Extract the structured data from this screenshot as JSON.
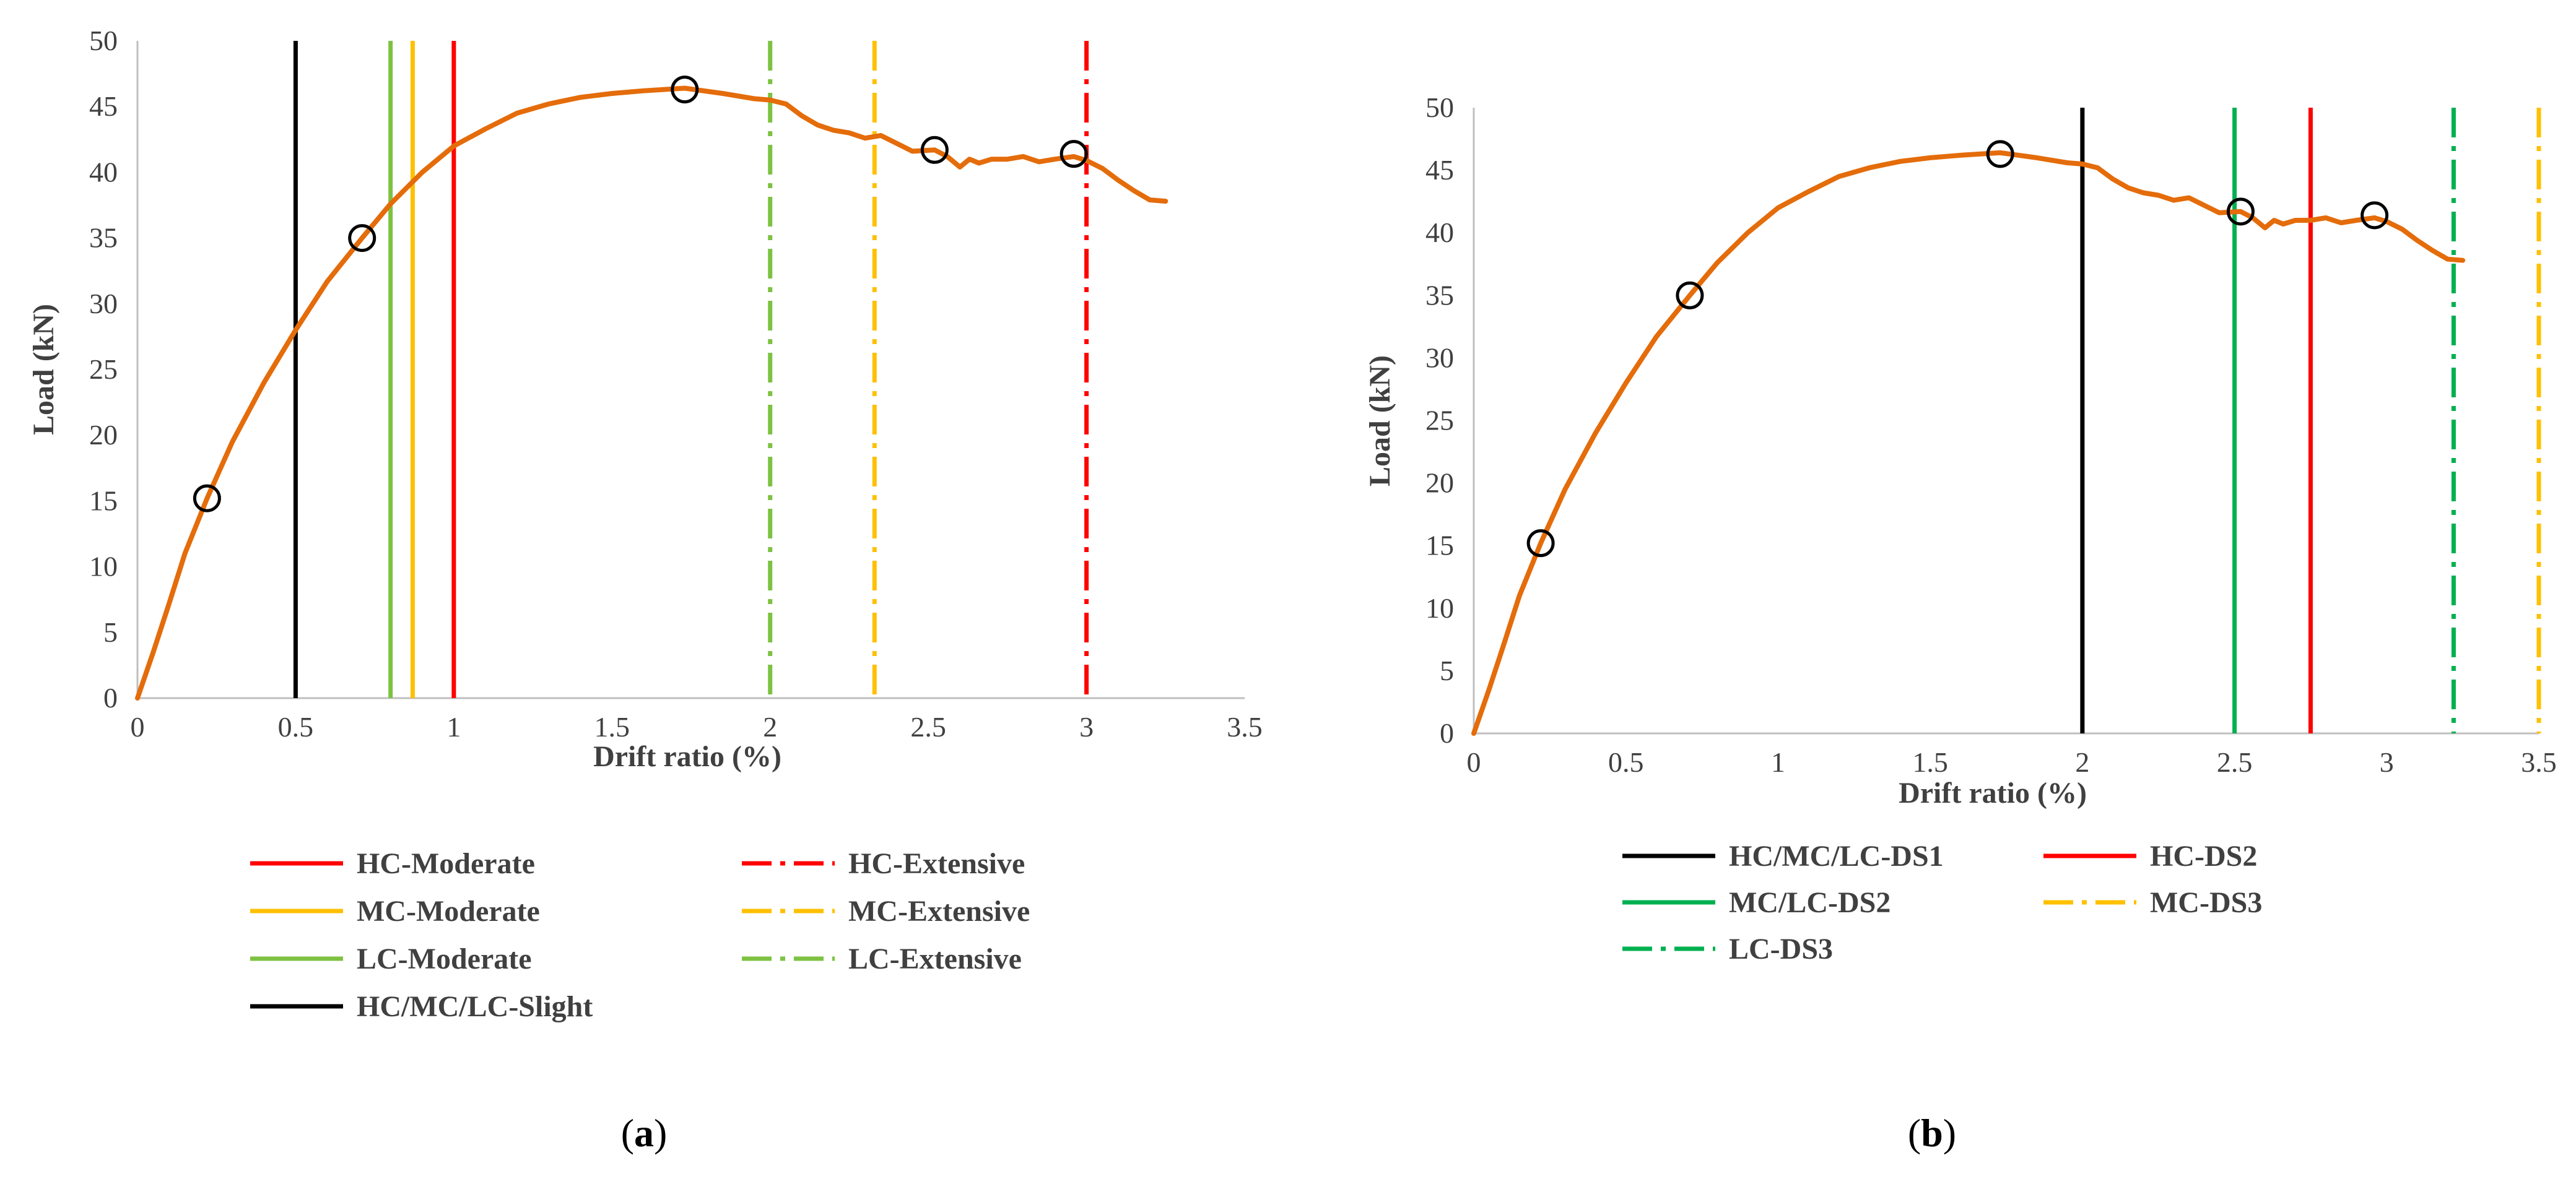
{
  "colors": {
    "curve": "#E46C0A",
    "hc": "#FF0000",
    "mc": "#FFC000",
    "lc_a": "#7DC242",
    "lc_b": "#00B050",
    "slight": "#000000"
  },
  "panel_labels": {
    "a": {
      "open": "(",
      "letter": "a",
      "close": ")"
    },
    "b": {
      "open": "(",
      "letter": "b",
      "close": ")"
    }
  },
  "chart_data": [
    {
      "id": "a",
      "type": "line",
      "xlabel": "Drift ratio (%)",
      "ylabel": "Load (kN)",
      "xlim": [
        0,
        3.5
      ],
      "ylim": [
        0,
        50
      ],
      "xticks": [
        "0",
        "0.5",
        "1",
        "1.5",
        "2",
        "2.5",
        "3",
        "3.5"
      ],
      "xtick_values": [
        0,
        0.5,
        1,
        1.5,
        2,
        2.5,
        3,
        3.5
      ],
      "yticks": [
        "0",
        "5",
        "10",
        "15",
        "20",
        "25",
        "30",
        "35",
        "40",
        "45",
        "50"
      ],
      "ytick_values": [
        0,
        5,
        10,
        15,
        20,
        25,
        30,
        35,
        40,
        45,
        50
      ],
      "curve": {
        "x": [
          0,
          0.05,
          0.1,
          0.15,
          0.22,
          0.3,
          0.4,
          0.5,
          0.6,
          0.71,
          0.8,
          0.9,
          1.0,
          1.1,
          1.2,
          1.3,
          1.4,
          1.5,
          1.6,
          1.73,
          1.85,
          1.95,
          2.0,
          2.05,
          2.1,
          2.15,
          2.2,
          2.25,
          2.3,
          2.35,
          2.4,
          2.45,
          2.52,
          2.56,
          2.6,
          2.63,
          2.66,
          2.7,
          2.75,
          2.8,
          2.85,
          2.9,
          2.96,
          3.0,
          3.05,
          3.1,
          3.15,
          3.2,
          3.25
        ],
        "y": [
          0,
          3.5,
          7.2,
          11,
          15.2,
          19.5,
          24,
          28,
          31.7,
          35,
          37.6,
          40,
          42,
          43.3,
          44.5,
          45.2,
          45.7,
          46,
          46.2,
          46.4,
          46,
          45.6,
          45.5,
          45.2,
          44.3,
          43.6,
          43.2,
          43,
          42.6,
          42.8,
          42.2,
          41.6,
          41.7,
          41.2,
          40.4,
          41.0,
          40.7,
          41.0,
          41.0,
          41.2,
          40.8,
          41.0,
          41.2,
          40.9,
          40.3,
          39.4,
          38.6,
          37.9,
          37.8
        ]
      },
      "markers": {
        "x": [
          0.22,
          0.71,
          1.73,
          2.52,
          2.96
        ],
        "y": [
          15.2,
          35,
          46.3,
          41.7,
          41.4
        ]
      },
      "vlines": [
        {
          "name": "HC/MC/LC-Slight",
          "x": 0.5,
          "color": "#000000",
          "style": "solid"
        },
        {
          "name": "LC-Moderate",
          "x": 0.8,
          "color": "#7DC242",
          "style": "solid"
        },
        {
          "name": "MC-Moderate",
          "x": 0.87,
          "color": "#FFC000",
          "style": "solid"
        },
        {
          "name": "HC-Moderate",
          "x": 1.0,
          "color": "#FF0000",
          "style": "solid"
        },
        {
          "name": "LC-Extensive",
          "x": 2.0,
          "color": "#7DC242",
          "style": "dashdot"
        },
        {
          "name": "MC-Extensive",
          "x": 2.33,
          "color": "#FFC000",
          "style": "dashdot"
        },
        {
          "name": "HC-Extensive",
          "x": 3.0,
          "color": "#FF0000",
          "style": "dashdot"
        }
      ],
      "legend": [
        {
          "label": "HC-Moderate",
          "color": "#FF0000",
          "style": "solid"
        },
        {
          "label": "HC-Extensive",
          "color": "#FF0000",
          "style": "dashdot"
        },
        {
          "label": "MC-Moderate",
          "color": "#FFC000",
          "style": "solid"
        },
        {
          "label": "MC-Extensive",
          "color": "#FFC000",
          "style": "dashdot"
        },
        {
          "label": "LC-Moderate",
          "color": "#7DC242",
          "style": "solid"
        },
        {
          "label": "LC-Extensive",
          "color": "#7DC242",
          "style": "dashdot"
        },
        {
          "label": "HC/MC/LC-Slight",
          "color": "#000000",
          "style": "solid"
        }
      ]
    },
    {
      "id": "b",
      "type": "line",
      "xlabel": "Drift ratio (%)",
      "ylabel": "Load (kN)",
      "xlim": [
        0,
        3.5
      ],
      "ylim": [
        0,
        50
      ],
      "xticks": [
        "0",
        "0.5",
        "1",
        "1.5",
        "2",
        "2.5",
        "3",
        "3.5"
      ],
      "xtick_values": [
        0,
        0.5,
        1,
        1.5,
        2,
        2.5,
        3,
        3.5
      ],
      "yticks": [
        "0",
        "5",
        "10",
        "15",
        "20",
        "25",
        "30",
        "35",
        "40",
        "45",
        "50"
      ],
      "ytick_values": [
        0,
        5,
        10,
        15,
        20,
        25,
        30,
        35,
        40,
        45,
        50
      ],
      "curve": {
        "x": [
          0,
          0.05,
          0.1,
          0.15,
          0.22,
          0.3,
          0.4,
          0.5,
          0.6,
          0.71,
          0.8,
          0.9,
          1.0,
          1.1,
          1.2,
          1.3,
          1.4,
          1.5,
          1.6,
          1.73,
          1.85,
          1.95,
          2.0,
          2.05,
          2.1,
          2.15,
          2.2,
          2.25,
          2.3,
          2.35,
          2.4,
          2.45,
          2.52,
          2.56,
          2.6,
          2.63,
          2.66,
          2.7,
          2.75,
          2.8,
          2.85,
          2.9,
          2.96,
          3.0,
          3.05,
          3.1,
          3.15,
          3.2,
          3.25
        ],
        "y": [
          0,
          3.5,
          7.2,
          11,
          15.2,
          19.5,
          24,
          28,
          31.7,
          35,
          37.6,
          40,
          42,
          43.3,
          44.5,
          45.2,
          45.7,
          46,
          46.2,
          46.4,
          46,
          45.6,
          45.5,
          45.2,
          44.3,
          43.6,
          43.2,
          43,
          42.6,
          42.8,
          42.2,
          41.6,
          41.7,
          41.2,
          40.4,
          41.0,
          40.7,
          41.0,
          41.0,
          41.2,
          40.8,
          41.0,
          41.2,
          40.9,
          40.3,
          39.4,
          38.6,
          37.9,
          37.8
        ]
      },
      "markers": {
        "x": [
          0.22,
          0.71,
          1.73,
          2.52,
          2.96
        ],
        "y": [
          15.2,
          35,
          46.3,
          41.7,
          41.4
        ]
      },
      "vlines": [
        {
          "name": "HC/MC/LC-DS1",
          "x": 2.0,
          "color": "#000000",
          "style": "solid"
        },
        {
          "name": "MC/LC-DS2",
          "x": 2.5,
          "color": "#00B050",
          "style": "solid"
        },
        {
          "name": "HC-DS2",
          "x": 2.75,
          "color": "#FF0000",
          "style": "solid"
        },
        {
          "name": "LC-DS3",
          "x": 3.22,
          "color": "#00B050",
          "style": "dashdot"
        },
        {
          "name": "MC-DS3",
          "x": 3.5,
          "color": "#FFC000",
          "style": "dashdot"
        }
      ],
      "legend": [
        {
          "label": "HC/MC/LC-DS1",
          "color": "#000000",
          "style": "solid"
        },
        {
          "label": "HC-DS2",
          "color": "#FF0000",
          "style": "solid"
        },
        {
          "label": "MC/LC-DS2",
          "color": "#00B050",
          "style": "solid"
        },
        {
          "label": "MC-DS3",
          "color": "#FFC000",
          "style": "dashdot"
        },
        {
          "label": "LC-DS3",
          "color": "#00B050",
          "style": "dashdot"
        }
      ]
    }
  ]
}
